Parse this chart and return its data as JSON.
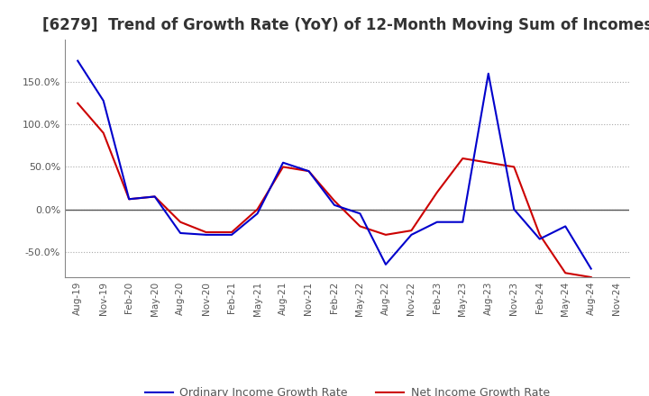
{
  "title": "[6279]  Trend of Growth Rate (YoY) of 12-Month Moving Sum of Incomes",
  "title_fontsize": 12,
  "ylim": [
    -80,
    200
  ],
  "ytick_vals": [
    -50,
    0,
    50,
    100,
    150
  ],
  "legend_labels": [
    "Ordinary Income Growth Rate",
    "Net Income Growth Rate"
  ],
  "x_labels": [
    "Aug-19",
    "Nov-19",
    "Feb-20",
    "May-20",
    "Aug-20",
    "Nov-20",
    "Feb-21",
    "May-21",
    "Aug-21",
    "Nov-21",
    "Feb-22",
    "May-22",
    "Aug-22",
    "Nov-22",
    "Feb-23",
    "May-23",
    "Aug-23",
    "Nov-23",
    "Feb-24",
    "May-24",
    "Aug-24",
    "Nov-24"
  ],
  "ordinary_income_growth": [
    175,
    128,
    12,
    15,
    -28,
    -30,
    -30,
    -5,
    55,
    45,
    5,
    -5,
    -65,
    -30,
    -15,
    -15,
    160,
    0,
    -35,
    -20,
    -70,
    null
  ],
  "net_income_growth": [
    125,
    90,
    12,
    15,
    -15,
    -27,
    -27,
    0,
    50,
    45,
    10,
    -20,
    -30,
    -25,
    20,
    60,
    55,
    50,
    -30,
    -75,
    -80,
    null
  ],
  "line_color_ordinary": "#0000CC",
  "line_color_net": "#CC0000",
  "line_width": 1.5,
  "bg_color": "#ffffff",
  "grid_color": "#aaaaaa"
}
